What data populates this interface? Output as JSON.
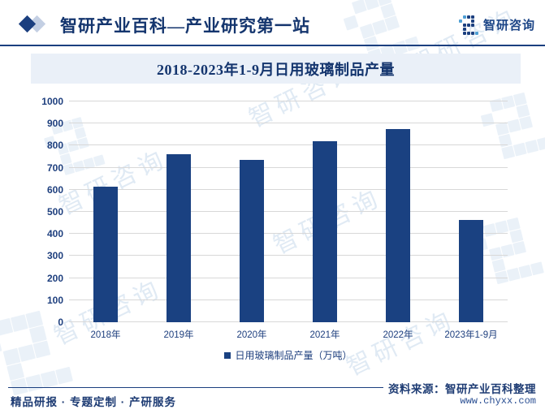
{
  "header": {
    "title": "智研产业百科—产业研究第一站",
    "logo_text": "智研咨询"
  },
  "chart_data": {
    "type": "bar",
    "title": "2018-2023年1-9月日用玻璃制品产量",
    "categories": [
      "2018年",
      "2019年",
      "2020年",
      "2021年",
      "2022年",
      "2023年1-9月"
    ],
    "values": [
      615,
      760,
      735,
      820,
      875,
      465
    ],
    "series_name": "日用玻璃制品产量（万吨）",
    "unit": "万吨",
    "ylim": [
      0,
      1000
    ],
    "yticks": [
      0,
      100,
      200,
      300,
      400,
      500,
      600,
      700,
      800,
      900,
      1000
    ],
    "grid": true,
    "legend_position": "bottom",
    "bar_color": "#1a4181"
  },
  "footer": {
    "left": "精品研报 · 专题定制 · 产研服务",
    "source": "资料来源：智研产业百科整理",
    "website": "www.chyxx.com"
  },
  "watermark": {
    "text": "智研咨询"
  },
  "colors": {
    "navy": "#1b3f7f",
    "bar": "#1a4181",
    "logo_light_blue": "#4e9fd4",
    "title_band_bg": "#eaf0f8",
    "gridline": "#d8d8d8"
  }
}
